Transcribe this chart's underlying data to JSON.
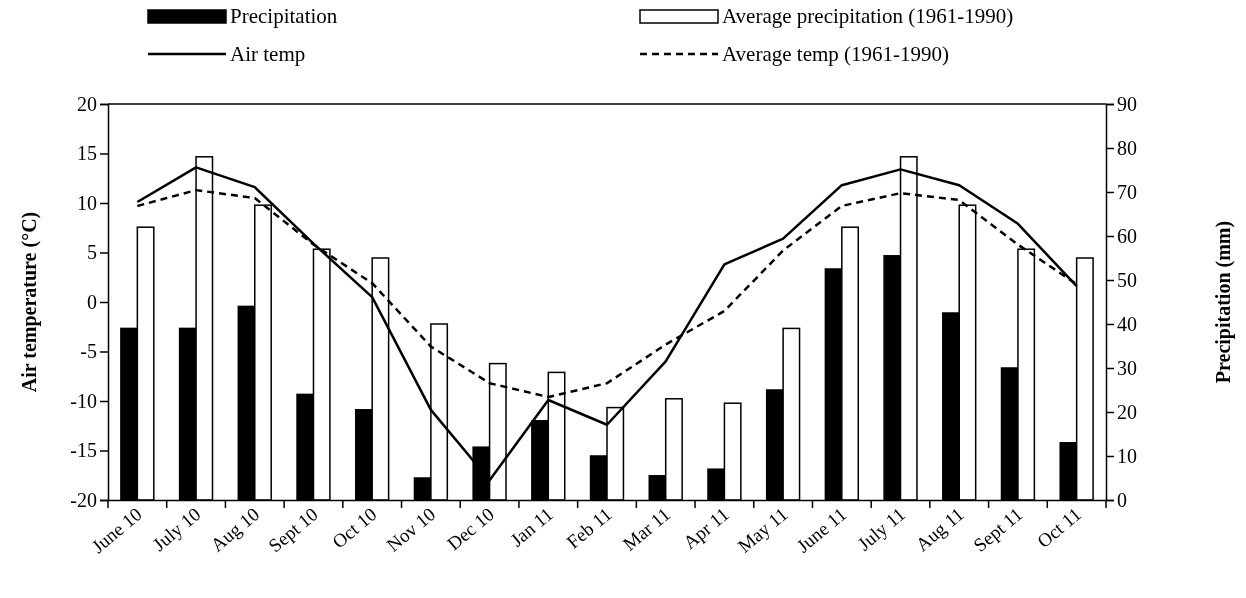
{
  "chart_data": {
    "type": "bar",
    "categories": [
      "June 10",
      "July 10",
      "Aug 10",
      "Sept 10",
      "Oct 10",
      "Nov 10",
      "Dec 10",
      "Jan 11",
      "Feb 11",
      "Mar 11",
      "Apr 11",
      "May 11",
      "June 11",
      "July 11",
      "Aug 11",
      "Sept 11",
      "Oct 11"
    ],
    "ylabel": "Air temperature (°C)",
    "y2label": "Precipitation (mm)",
    "ylim": [
      -20,
      20
    ],
    "yticks": [
      -20,
      -15,
      -10,
      -5,
      0,
      5,
      10,
      15,
      20
    ],
    "y2lim": [
      0,
      90
    ],
    "y2ticks": [
      0,
      10,
      20,
      30,
      40,
      50,
      60,
      70,
      80,
      90
    ],
    "legend": "top",
    "grid": false,
    "series": [
      {
        "name": "Precipitation",
        "axis": "y2",
        "color": "#000000",
        "values": [
          39,
          39,
          44,
          24,
          20.5,
          5,
          12,
          18,
          10,
          5.5,
          7,
          25,
          52.5,
          55.5,
          42.5,
          30,
          13
        ]
      },
      {
        "name": "Average precipitation (1961-1990)",
        "axis": "y2",
        "color": "#ffffff",
        "values": [
          62,
          78,
          67,
          57,
          55,
          40,
          31,
          29,
          21,
          23,
          22,
          39,
          62,
          78,
          67,
          57,
          55
        ]
      },
      {
        "name": "Air temp",
        "type": "line",
        "axis": "y",
        "color": "#000000",
        "line_style": "solid",
        "values": [
          10.1,
          13.6,
          11.6,
          5.9,
          0.5,
          -10.9,
          -18,
          -9.9,
          -12.4,
          -6,
          3.8,
          6.4,
          11.8,
          13.4,
          11.8,
          7.9,
          1.6
        ]
      },
      {
        "name": "Average temp (1961-1990)",
        "type": "line",
        "axis": "y",
        "color": "#000000",
        "line_style": "dashed",
        "values": [
          9.7,
          11.3,
          10.5,
          5.8,
          1.9,
          -4.5,
          -8.2,
          -9.6,
          -8.2,
          -4.3,
          -0.9,
          5.2,
          9.7,
          11,
          10.3,
          5.8,
          1.8
        ]
      }
    ]
  }
}
